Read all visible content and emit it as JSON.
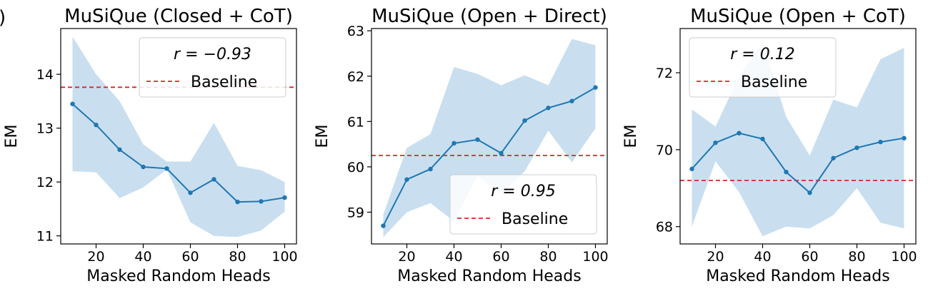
{
  "chart_data": [
    {
      "type": "line",
      "title": "MuSiQue (Closed + CoT)",
      "xlabel": "Masked Random Heads",
      "ylabel": "EM",
      "x": [
        10,
        20,
        30,
        40,
        50,
        60,
        70,
        80,
        90,
        100
      ],
      "series": [
        {
          "values": [
            13.45,
            13.06,
            12.6,
            12.28,
            12.25,
            11.8,
            12.05,
            11.63,
            11.64,
            11.71
          ],
          "lower": [
            12.2,
            12.18,
            11.7,
            11.9,
            12.23,
            11.25,
            11.0,
            10.98,
            11.1,
            11.45
          ],
          "upper": [
            14.7,
            14.0,
            13.5,
            12.7,
            12.38,
            12.38,
            13.1,
            12.3,
            12.22,
            12.0
          ]
        }
      ],
      "baseline": 13.76,
      "legend": {
        "r_text": "r = −0.93",
        "baseline_label": "Baseline",
        "placement": "top-right"
      },
      "xlim": [
        5,
        105
      ],
      "ylim": [
        10.85,
        14.85
      ],
      "xticks": [
        20,
        40,
        60,
        80,
        100
      ],
      "yticks": [
        11,
        12,
        13,
        14
      ],
      "grid": false
    },
    {
      "type": "line",
      "title": "MuSiQue (Open + Direct)",
      "xlabel": "Masked Random Heads",
      "ylabel": "EM",
      "x": [
        10,
        20,
        30,
        40,
        50,
        60,
        70,
        80,
        90,
        100
      ],
      "series": [
        {
          "values": [
            58.7,
            59.72,
            59.95,
            60.52,
            60.6,
            60.3,
            61.02,
            61.3,
            61.45,
            61.75
          ],
          "lower": [
            58.45,
            59.0,
            59.2,
            58.8,
            59.8,
            59.4,
            59.9,
            60.8,
            60.1,
            60.85
          ],
          "upper": [
            58.95,
            60.42,
            60.72,
            62.2,
            62.05,
            61.8,
            62.02,
            61.8,
            62.82,
            62.68
          ]
        }
      ],
      "baseline": 60.25,
      "legend": {
        "r_text": "r = 0.95",
        "baseline_label": "Baseline",
        "placement": "bottom-right"
      },
      "xlim": [
        5,
        105
      ],
      "ylim": [
        58.3,
        63.05
      ],
      "xticks": [
        20,
        40,
        60,
        80,
        100
      ],
      "yticks": [
        59,
        60,
        61,
        62,
        63
      ],
      "grid": false
    },
    {
      "type": "line",
      "title": "MuSiQue (Open + CoT)",
      "xlabel": "Masked Random Heads",
      "ylabel": "EM",
      "x": [
        10,
        20,
        30,
        40,
        50,
        60,
        70,
        80,
        90,
        100
      ],
      "series": [
        {
          "values": [
            69.5,
            70.18,
            70.43,
            70.28,
            69.42,
            68.88,
            69.78,
            70.05,
            70.2,
            70.3
          ],
          "lower": [
            68.0,
            69.7,
            68.9,
            67.75,
            68.0,
            67.95,
            68.3,
            69.0,
            68.1,
            67.95
          ],
          "upper": [
            71.05,
            70.6,
            71.9,
            72.8,
            70.85,
            69.85,
            71.3,
            71.1,
            72.35,
            72.65
          ]
        }
      ],
      "baseline": 69.2,
      "legend": {
        "r_text": "r = 0.12",
        "baseline_label": "Baseline",
        "placement": "top-left"
      },
      "xlim": [
        5,
        105
      ],
      "ylim": [
        67.55,
        73.15
      ],
      "xticks": [
        20,
        40,
        60,
        80,
        100
      ],
      "yticks": [
        68,
        70,
        72
      ],
      "grid": false
    }
  ],
  "colors": {
    "line": "#1f77b4",
    "band": "#c9dff0",
    "baseline": "#d62728"
  },
  "edge_label": ")"
}
